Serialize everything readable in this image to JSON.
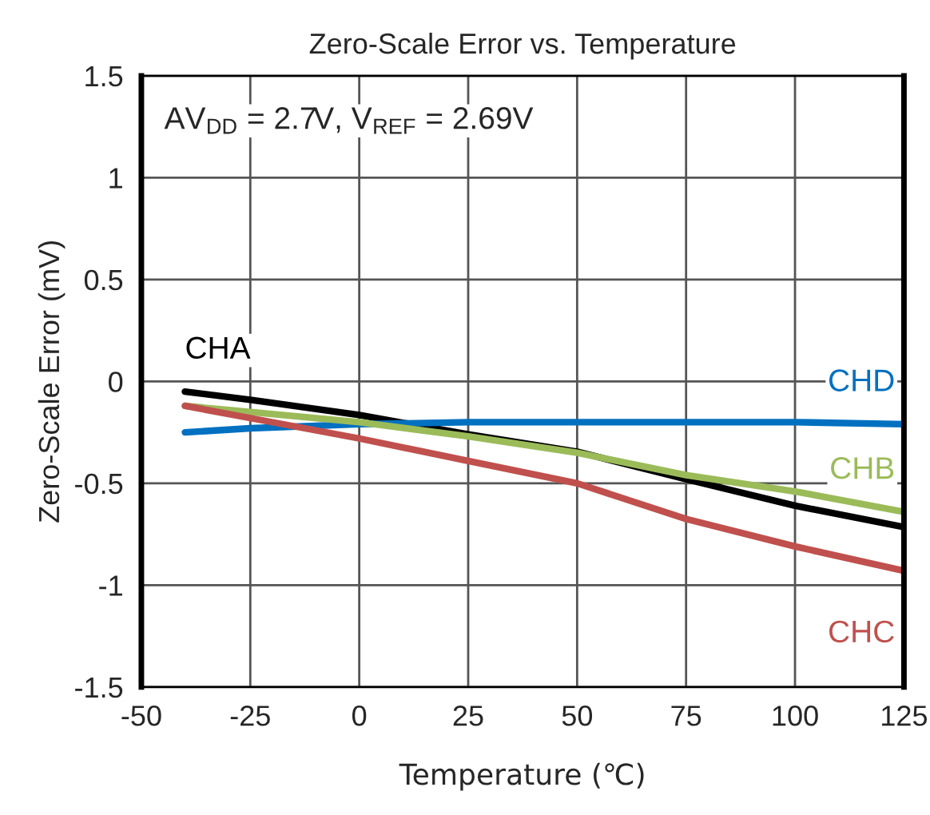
{
  "chart_data": {
    "type": "line",
    "title": "Zero-Scale Error vs. Temperature",
    "xlabel": "Temperature (℃)",
    "ylabel": "Zero-Scale Error (mV)",
    "annotations": [
      "AV$_{DD}$ = 2.7V, V$_{REF}$ = 2.69V"
    ],
    "x": [
      -40,
      -25,
      0,
      25,
      50,
      75,
      100,
      125
    ],
    "series": [
      {
        "name": "CHA",
        "color": "#000000",
        "values": [
          -0.05,
          -0.09,
          -0.165,
          -0.26,
          -0.345,
          -0.48,
          -0.61,
          -0.715
        ]
      },
      {
        "name": "CHD",
        "color": "#0070c0",
        "values": [
          -0.25,
          -0.23,
          -0.21,
          -0.2,
          -0.2,
          -0.2,
          -0.2,
          -0.21
        ]
      },
      {
        "name": "CHB",
        "color": "#9bbb59",
        "values": [
          -0.12,
          -0.15,
          -0.2,
          -0.27,
          -0.35,
          -0.46,
          -0.54,
          -0.64
        ]
      },
      {
        "name": "CHC",
        "color": "#c0504d",
        "values": [
          -0.12,
          -0.18,
          -0.28,
          -0.39,
          -0.5,
          -0.675,
          -0.81,
          -0.93
        ]
      }
    ],
    "xlim": [
      -50,
      125
    ],
    "xticks": [
      -50,
      -25,
      0,
      25,
      50,
      75,
      100,
      125
    ],
    "ylim": [
      -1.5,
      1.5
    ],
    "yticks": [
      -1.5,
      -1,
      -0.5,
      0,
      0.5,
      1,
      1.5
    ],
    "grid": true,
    "legend": false,
    "marker": "none",
    "line_style": "solid"
  }
}
